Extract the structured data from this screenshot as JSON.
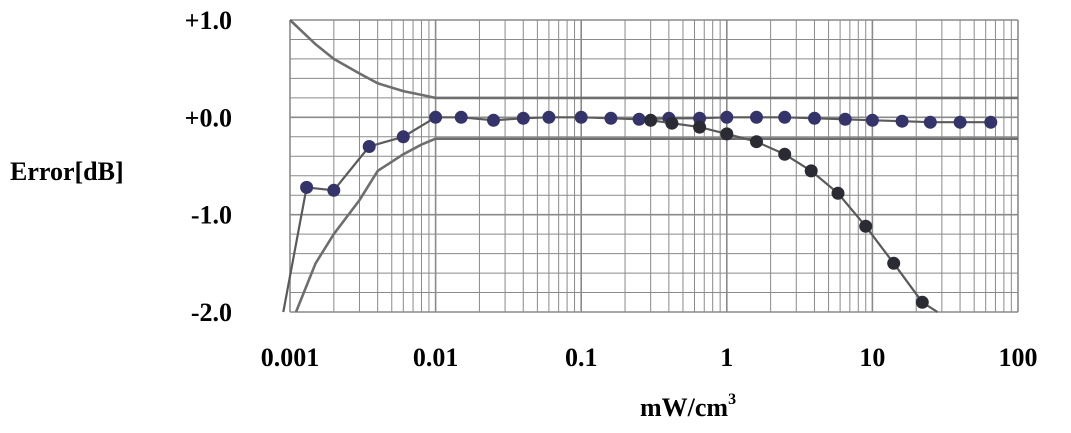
{
  "chart_data": {
    "type": "line",
    "title": "",
    "xlabel": "mW/cm",
    "xlabel_superscript": "3",
    "ylabel": "Error[dB]",
    "x_scale": "log",
    "xlim": [
      0.001,
      100
    ],
    "ylim": [
      -2.0,
      1.0
    ],
    "grid": true,
    "x_tick_labels": [
      {
        "value": 0.001,
        "label": "0.001"
      },
      {
        "value": 0.01,
        "label": "0.01"
      },
      {
        "value": 0.1,
        "label": "0.1"
      },
      {
        "value": 1,
        "label": "1"
      },
      {
        "value": 10,
        "label": "10"
      },
      {
        "value": 100,
        "label": "100"
      }
    ],
    "y_tick_labels": [
      {
        "value": 1.0,
        "label": "+1.0"
      },
      {
        "value": 0.0,
        "label": "+0.0"
      },
      {
        "value": -1.0,
        "label": "-1.0"
      },
      {
        "value": -2.0,
        "label": "-2.0"
      }
    ],
    "colors": {
      "grid": "#8a8a8a",
      "limit_line": "#6e6e6e",
      "series_line": "#5a5a5a",
      "series_a_marker": "#34346a",
      "series_b_marker": "#2b2b33"
    },
    "limits": [
      {
        "x": [
          0.001,
          0.0015,
          0.002,
          0.003,
          0.004,
          0.006,
          0.008,
          0.01,
          100
        ],
        "y": [
          1.0,
          0.75,
          0.6,
          0.45,
          0.35,
          0.27,
          0.23,
          0.2,
          0.2
        ]
      },
      {
        "x": [
          0.0011,
          0.0015,
          0.002,
          0.003,
          0.004,
          0.006,
          0.008,
          0.01,
          100
        ],
        "y": [
          -2.0,
          -1.5,
          -1.2,
          -0.85,
          -0.55,
          -0.38,
          -0.28,
          -0.22,
          -0.22
        ]
      }
    ],
    "series": [
      {
        "x": [
          0.0009,
          0.0013,
          0.002,
          0.0035,
          0.006,
          0.01,
          0.015,
          0.025,
          0.04,
          0.06,
          0.1,
          0.16,
          0.25,
          0.4,
          0.65,
          1.0,
          1.6,
          2.5,
          4,
          6.5,
          10,
          16,
          25,
          40,
          65
        ],
        "y": [
          -2.0,
          -0.72,
          -0.75,
          -0.3,
          -0.2,
          0.0,
          0.0,
          -0.03,
          -0.01,
          0.0,
          0.0,
          -0.01,
          -0.02,
          -0.01,
          -0.01,
          0.0,
          0.0,
          0.0,
          -0.01,
          -0.02,
          -0.03,
          -0.04,
          -0.05,
          -0.05,
          -0.05
        ],
        "markers_from_index": 1
      },
      {
        "x": [
          0.3,
          0.42,
          0.65,
          1.0,
          1.6,
          2.5,
          3.8,
          5.8,
          9,
          14,
          22,
          28
        ],
        "y": [
          -0.03,
          -0.06,
          -0.1,
          -0.17,
          -0.25,
          -0.38,
          -0.55,
          -0.78,
          -1.12,
          -1.5,
          -1.9,
          -2.0
        ],
        "markers_from_index": 0,
        "markers_to_index": 10
      }
    ]
  }
}
